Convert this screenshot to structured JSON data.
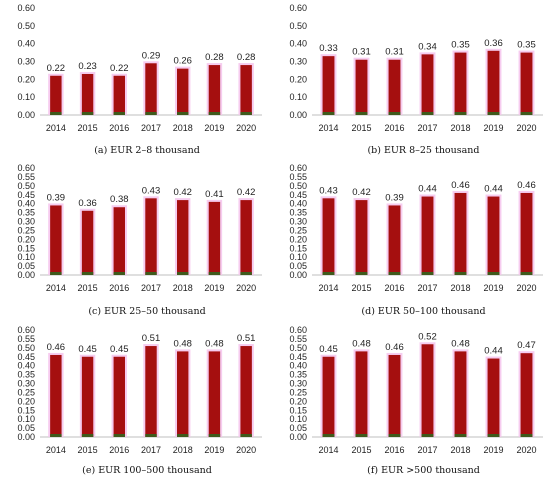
{
  "colors": {
    "bar": "#a50f0f",
    "bar_halo": "#f4c3ec",
    "bar_base": "#3f5a1c",
    "axis": "#bfbfbf"
  },
  "chart_data": [
    {
      "type": "bar",
      "title": "(a) EUR 2–8 thousand",
      "categories": [
        "2014",
        "2015",
        "2016",
        "2017",
        "2018",
        "2019",
        "2020"
      ],
      "values": [
        0.22,
        0.23,
        0.22,
        0.29,
        0.26,
        0.28,
        0.28
      ],
      "value_labels": [
        "0.22",
        "0.23",
        "0.22",
        "0.29",
        "0.26",
        "0.28",
        "0.28"
      ],
      "yticks": [
        "0.00",
        "0.10",
        "0.20",
        "0.30",
        "0.40",
        "0.50",
        "0.60"
      ],
      "ylim": [
        0,
        0.6
      ],
      "grid": false
    },
    {
      "type": "bar",
      "title": "(b) EUR 8–25 thousand",
      "categories": [
        "2014",
        "2015",
        "2016",
        "2017",
        "2018",
        "2019",
        "2020"
      ],
      "values": [
        0.33,
        0.31,
        0.31,
        0.34,
        0.35,
        0.36,
        0.35
      ],
      "value_labels": [
        "0.33",
        "0.31",
        "0.31",
        "0.34",
        "0.35",
        "0.36",
        "0.35"
      ],
      "yticks": [
        "0.00",
        "0.10",
        "0.20",
        "0.30",
        "0.40",
        "0.50",
        "0.60"
      ],
      "ylim": [
        0,
        0.6
      ],
      "grid": false
    },
    {
      "type": "bar",
      "title": "(c) EUR 25–50 thousand",
      "categories": [
        "2014",
        "2015",
        "2016",
        "2017",
        "2018",
        "2019",
        "2020"
      ],
      "values": [
        0.39,
        0.36,
        0.38,
        0.43,
        0.42,
        0.41,
        0.42
      ],
      "value_labels": [
        "0.39",
        "0.36",
        "0.38",
        "0.43",
        "0.42",
        "0.41",
        "0.42"
      ],
      "yticks": [
        "0.00",
        "0.05",
        "0.10",
        "0.15",
        "0.20",
        "0.25",
        "0.30",
        "0.35",
        "0.40",
        "0.45",
        "0.50",
        "0.55",
        "0.60"
      ],
      "ylim": [
        0,
        0.6
      ],
      "grid": false
    },
    {
      "type": "bar",
      "title": "(d) EUR 50–100 thousand",
      "categories": [
        "2014",
        "2015",
        "2016",
        "2017",
        "2018",
        "2019",
        "2020"
      ],
      "values": [
        0.43,
        0.42,
        0.39,
        0.44,
        0.46,
        0.44,
        0.46
      ],
      "value_labels": [
        "0.43",
        "0.42",
        "0.39",
        "0.44",
        "0.46",
        "0.44",
        "0.46"
      ],
      "yticks": [
        "0.00",
        "0.05",
        "0.10",
        "0.15",
        "0.20",
        "0.25",
        "0.30",
        "0.35",
        "0.40",
        "0.45",
        "0.50",
        "0.55",
        "0.60"
      ],
      "ylim": [
        0,
        0.6
      ],
      "grid": false
    },
    {
      "type": "bar",
      "title": "(e) EUR 100–500 thousand",
      "categories": [
        "2014",
        "2015",
        "2016",
        "2017",
        "2018",
        "2019",
        "2020"
      ],
      "values": [
        0.46,
        0.45,
        0.45,
        0.51,
        0.48,
        0.48,
        0.51
      ],
      "value_labels": [
        "0.46",
        "0.45",
        "0.45",
        "0.51",
        "0.48",
        "0.48",
        "0.51"
      ],
      "yticks": [
        "0.00",
        "0.05",
        "0.10",
        "0.15",
        "0.20",
        "0.25",
        "0.30",
        "0.35",
        "0.40",
        "0.45",
        "0.50",
        "0.55",
        "0.60"
      ],
      "ylim": [
        0,
        0.6
      ],
      "grid": false
    },
    {
      "type": "bar",
      "title": "(f) EUR >500 thousand",
      "categories": [
        "2014",
        "2015",
        "2016",
        "2017",
        "2018",
        "2019",
        "2020"
      ],
      "values": [
        0.45,
        0.48,
        0.46,
        0.52,
        0.48,
        0.44,
        0.47
      ],
      "value_labels": [
        "0.45",
        "0.48",
        "0.46",
        "0.52",
        "0.48",
        "0.44",
        "0.47"
      ],
      "yticks": [
        "0.00",
        "0.05",
        "0.10",
        "0.15",
        "0.20",
        "0.25",
        "0.30",
        "0.35",
        "0.40",
        "0.45",
        "0.50",
        "0.55",
        "0.60"
      ],
      "ylim": [
        0,
        0.6
      ],
      "grid": false
    }
  ]
}
